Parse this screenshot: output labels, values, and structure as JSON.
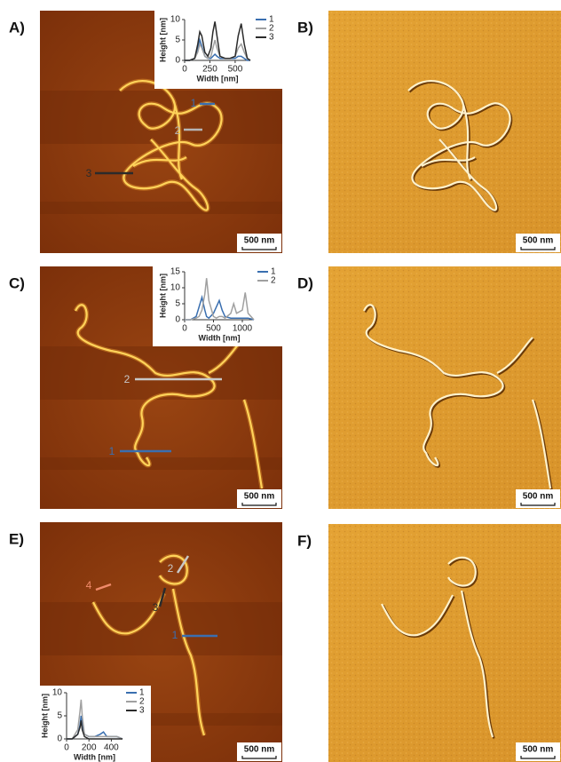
{
  "panels": [
    {
      "label": "A)",
      "scale_bar": "500 nm",
      "profile_labels": [
        "1",
        "2",
        "3"
      ],
      "inset": {
        "type": "line",
        "y_label": "Height [nm]",
        "x_label": "Width [nm]",
        "x": [
          0,
          50,
          100,
          130,
          150,
          170,
          200,
          230,
          260,
          280,
          300,
          320,
          350,
          400,
          450,
          500,
          530,
          560,
          590,
          620,
          650
        ],
        "xlim": [
          0,
          650
        ],
        "xticks": [
          0,
          250,
          500
        ],
        "ylim": [
          0,
          10
        ],
        "yticks": [
          0,
          5,
          10
        ],
        "series": [
          {
            "name": "1",
            "color": "#3a6fb0",
            "values": [
              0,
              0,
              0.5,
              3,
              5,
              3.5,
              1,
              0.5,
              0.5,
              1,
              1.5,
              1,
              0.5,
              0.5,
              0.5,
              0.5,
              1,
              1,
              0.5,
              0,
              0
            ]
          },
          {
            "name": "2",
            "color": "#a0a0a0",
            "values": [
              0,
              0,
              0.5,
              2,
              4,
              3,
              1,
              0.5,
              1,
              3,
              5,
              3,
              1,
              0.5,
              0.5,
              1,
              3,
              4,
              2,
              0.5,
              0
            ]
          },
          {
            "name": "3",
            "color": "#2b2b2b",
            "values": [
              0,
              0,
              0.5,
              4,
              7,
              6,
              2,
              1,
              3,
              7,
              9.5,
              6,
              1,
              0.5,
              0.5,
              1,
              6,
              9,
              4,
              0.5,
              0
            ]
          }
        ]
      }
    },
    {
      "label": "B)",
      "scale_bar": "500 nm"
    },
    {
      "label": "C)",
      "scale_bar": "500 nm",
      "profile_labels": [
        "2",
        "1"
      ],
      "inset": {
        "type": "line",
        "y_label": "Height [nm]",
        "x_label": "Width [nm]",
        "x": [
          0,
          100,
          200,
          250,
          300,
          350,
          380,
          420,
          500,
          550,
          600,
          650,
          700,
          800,
          850,
          900,
          1000,
          1050,
          1100,
          1200
        ],
        "xlim": [
          0,
          1200
        ],
        "xticks": [
          0,
          500,
          1000
        ],
        "ylim": [
          0,
          15
        ],
        "yticks": [
          0,
          5,
          10,
          15
        ],
        "series": [
          {
            "name": "1",
            "color": "#3a6fb0",
            "values": [
              0,
              0,
              1,
              4,
              7,
              3,
              1,
              0.5,
              2,
              4,
              6,
              3,
              1,
              0.5,
              0.5,
              0.5,
              0.5,
              0.5,
              0.5,
              0
            ]
          },
          {
            "name": "2",
            "color": "#a0a0a0",
            "values": [
              0,
              0,
              0.5,
              1,
              3,
              8,
              13,
              6,
              1,
              0.5,
              1,
              1,
              0.5,
              2,
              5,
              2,
              3,
              8.5,
              2,
              0
            ]
          }
        ]
      }
    },
    {
      "label": "D)",
      "scale_bar": "500 nm"
    },
    {
      "label": "E)",
      "scale_bar": "500 nm",
      "profile_labels": [
        "4",
        "2",
        "3",
        "1"
      ],
      "inset": {
        "type": "line",
        "y_label": "Height [nm]",
        "x_label": "Width [nm]",
        "x": [
          0,
          50,
          100,
          120,
          130,
          140,
          160,
          200,
          250,
          300,
          330,
          360,
          400,
          450,
          500
        ],
        "xlim": [
          0,
          500
        ],
        "xticks": [
          0,
          200,
          400
        ],
        "ylim": [
          0,
          10
        ],
        "yticks": [
          0,
          5,
          10
        ],
        "series": [
          {
            "name": "1",
            "color": "#3a6fb0",
            "values": [
              0,
              0,
              1,
              3,
              5,
              3,
              1,
              0.5,
              0.5,
              1,
              1.5,
              0.5,
              0.5,
              0.5,
              0
            ]
          },
          {
            "name": "2",
            "color": "#a0a0a0",
            "values": [
              0,
              0,
              2,
              6,
              8.5,
              5,
              1,
              0.5,
              0.5,
              0.5,
              0.5,
              0.5,
              0.5,
              0.5,
              0
            ]
          },
          {
            "name": "3",
            "color": "#2b2b2b",
            "values": [
              0,
              0,
              1,
              2.5,
              4,
              2,
              0.5,
              0,
              0,
              0,
              0,
              0,
              0,
              0,
              0
            ]
          }
        ]
      }
    },
    {
      "label": "F)",
      "scale_bar": "500 nm"
    }
  ]
}
